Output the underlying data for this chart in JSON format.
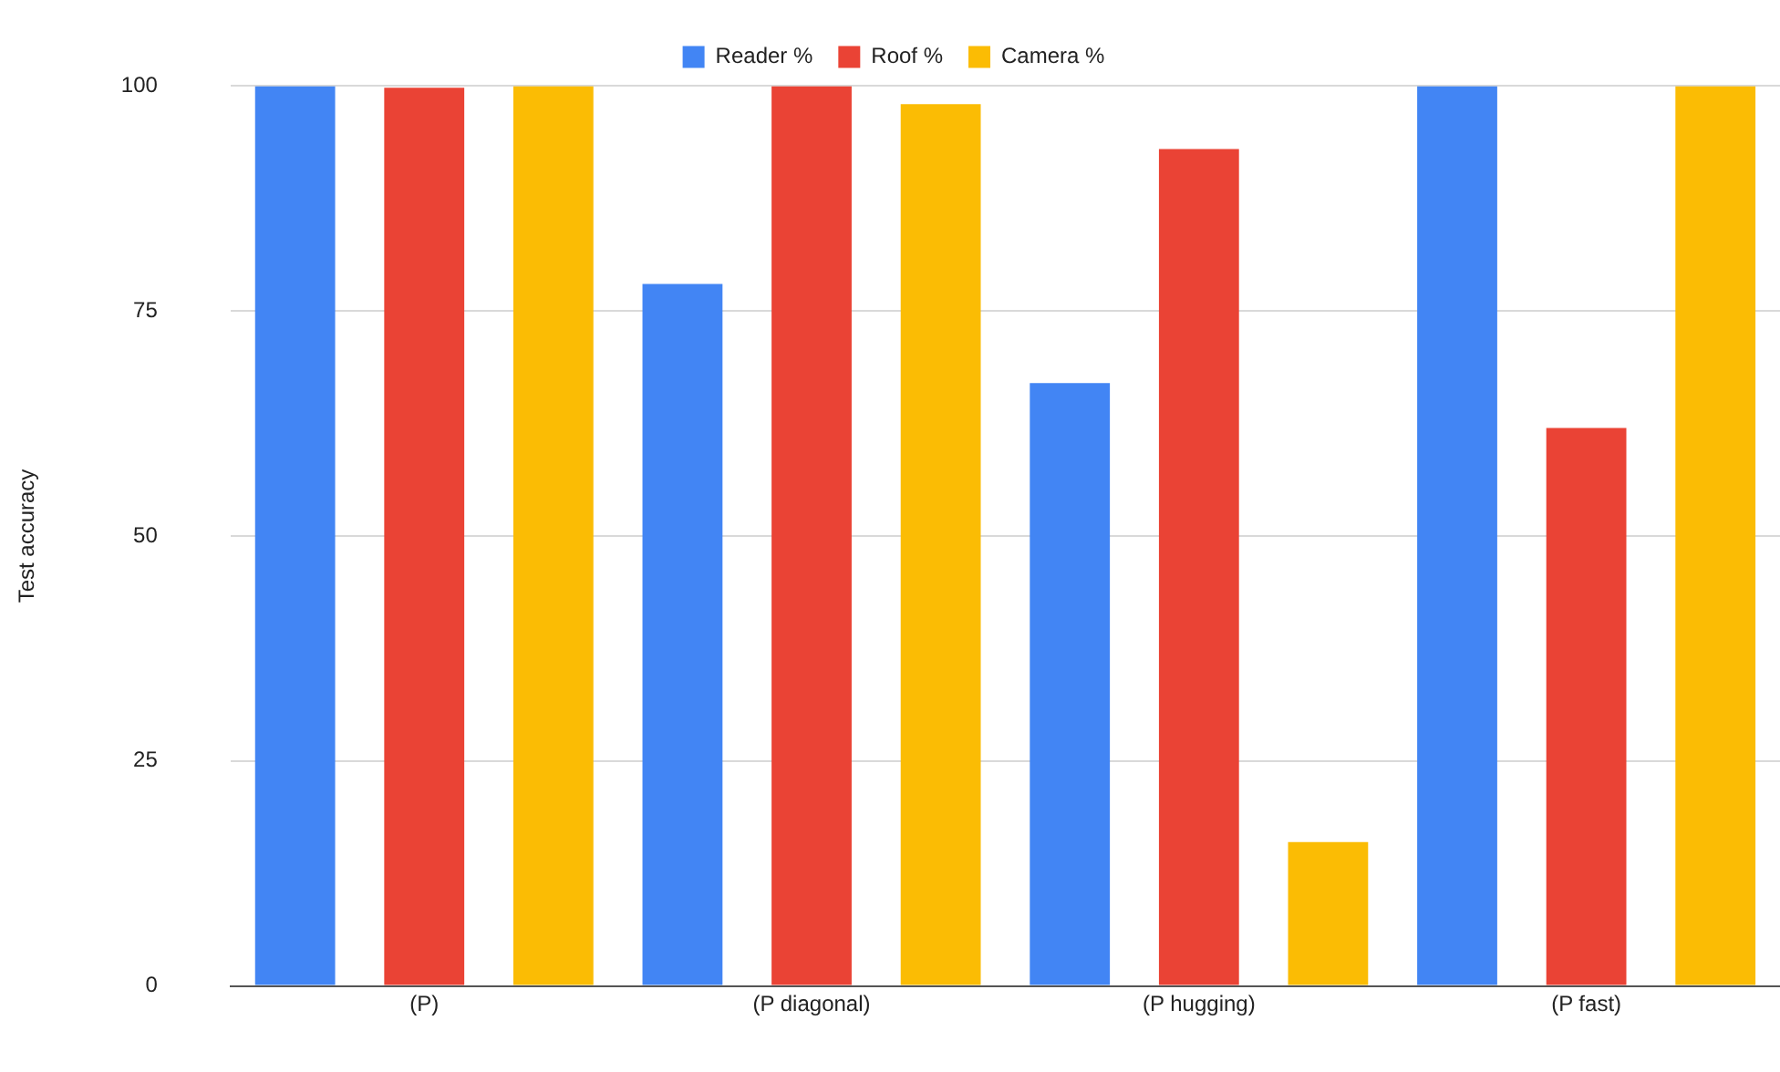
{
  "chart_data": {
    "type": "bar",
    "ylabel": "Test accuracy",
    "categories": [
      "(P)",
      "(P diagonal)",
      "(P hugging)",
      "(P fast)"
    ],
    "series": [
      {
        "name": "Reader %",
        "color": "#4285f4",
        "values": [
          100,
          78,
          67,
          100
        ]
      },
      {
        "name": "Roof %",
        "color": "#ea4335",
        "values": [
          99.8,
          100,
          93,
          62
        ]
      },
      {
        "name": "Camera %",
        "color": "#fbbc04",
        "values": [
          100,
          98,
          16,
          100
        ]
      }
    ],
    "ylim": [
      0,
      100
    ],
    "yticks": [
      0,
      25,
      50,
      75,
      100
    ],
    "grid": "y",
    "legend": "top"
  }
}
